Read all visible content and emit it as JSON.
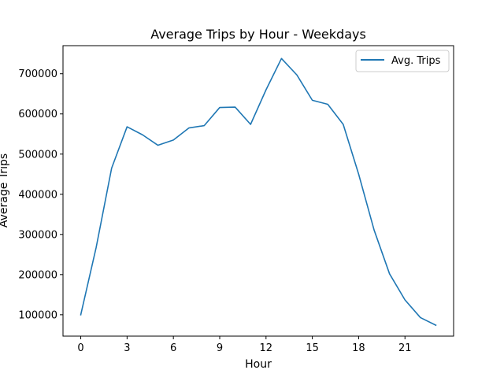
{
  "chart_data": {
    "type": "line",
    "title": "Average Trips by Hour - Weekdays",
    "xlabel": "Hour",
    "ylabel": "Average Trips",
    "x": [
      0,
      1,
      2,
      3,
      4,
      5,
      6,
      7,
      8,
      9,
      10,
      11,
      12,
      13,
      14,
      15,
      16,
      17,
      18,
      19,
      20,
      21,
      22,
      23
    ],
    "series": [
      {
        "name": "Avg. Trips",
        "color": "#1f77b4",
        "values": [
          100000,
          268000,
          465000,
          568000,
          548000,
          522000,
          535000,
          565000,
          571000,
          616000,
          617000,
          574000,
          660000,
          738000,
          697000,
          634000,
          624000,
          574000,
          450000,
          311000,
          202000,
          137000,
          93000,
          74000
        ]
      }
    ],
    "xticks": [
      0,
      3,
      6,
      9,
      12,
      15,
      18,
      21
    ],
    "yticks": [
      100000,
      200000,
      300000,
      400000,
      500000,
      600000,
      700000
    ],
    "xlim": [
      -1.15,
      24.15
    ],
    "ylim": [
      46800,
      770000
    ],
    "grid": false,
    "legend_position": "top-right"
  }
}
